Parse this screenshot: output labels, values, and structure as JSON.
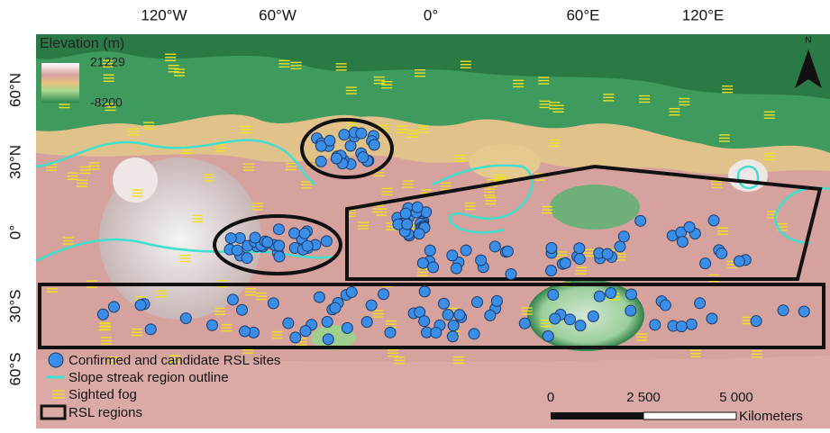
{
  "map": {
    "top_labels": [
      "120°W",
      "60°W",
      "0°",
      "60°E",
      "120°E"
    ],
    "left_labels": [
      "60°N",
      "30°N",
      "0°",
      "30°S",
      "60°S"
    ]
  },
  "elevation_legend": {
    "title": "Elevation (m)",
    "max": 21229,
    "min": -8200
  },
  "legend": {
    "items": [
      "Confirmed and candidate RSL sites",
      "Slope streak region outline",
      "Sighted fog",
      "RSL regions"
    ]
  },
  "scale_bar": {
    "labels": [
      "0",
      "2 500",
      "5 000"
    ],
    "unit": "Kilometers"
  },
  "north": "N"
}
